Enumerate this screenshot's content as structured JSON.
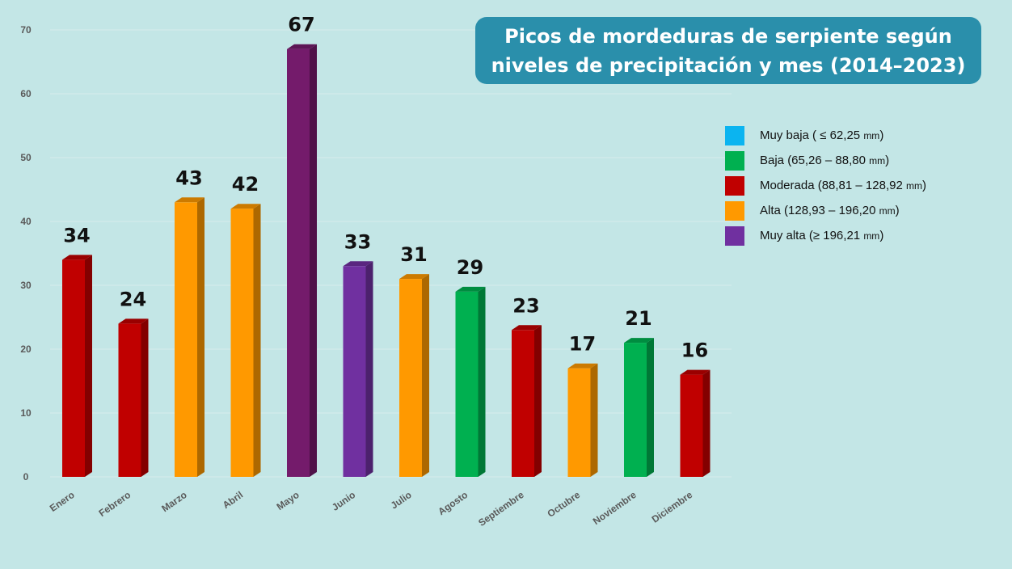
{
  "title": {
    "line1": "Picos de mordeduras de serpiente según",
    "line2": "niveles de precipitación y mes (2014–2023)"
  },
  "legend": {
    "unit": "mm",
    "items": [
      {
        "label": "Muy baja ( ≤ 62,25 ",
        "close": ")",
        "color": "#0bb4f0"
      },
      {
        "label": "Baja (65,26 – 88,80 ",
        "close": ")",
        "color": "#00b050"
      },
      {
        "label": "Moderada (88,81 – 128,92 ",
        "close": ")",
        "color": "#c00000"
      },
      {
        "label": "Alta (128,93 – 196,20 ",
        "close": ")",
        "color": "#ff9900"
      },
      {
        "label": "Muy alta (≥ 196,21 ",
        "close": ")",
        "color": "#7030a0"
      }
    ]
  },
  "chart_data": {
    "type": "bar",
    "title": "Picos de mordeduras de serpiente según niveles de precipitación y mes (2014–2023)",
    "categories": [
      "Enero",
      "Febrero",
      "Marzo",
      "Abril",
      "Mayo",
      "Junio",
      "Julio",
      "Agosto",
      "Septiembre",
      "Octubre",
      "Noviembre",
      "Diciembre"
    ],
    "values": [
      34,
      24,
      43,
      42,
      67,
      33,
      31,
      29,
      23,
      17,
      21,
      16
    ],
    "levels": [
      "Moderada",
      "Moderada",
      "Alta",
      "Alta",
      "Muy alta",
      "Muy alta",
      "Alta",
      "Baja",
      "Moderada",
      "Alta",
      "Baja",
      "Moderada"
    ],
    "bar_colors": [
      "#c00000",
      "#c00000",
      "#ff9900",
      "#ff9900",
      "#741b6b",
      "#7030a0",
      "#ff9900",
      "#00b050",
      "#c00000",
      "#ff9900",
      "#00b050",
      "#c00000"
    ],
    "yticks": [
      0,
      10,
      20,
      30,
      40,
      50,
      60,
      70
    ],
    "ylim": [
      0,
      70
    ],
    "xlabel": "",
    "ylabel": "",
    "grid": true,
    "legend_position": "right"
  }
}
